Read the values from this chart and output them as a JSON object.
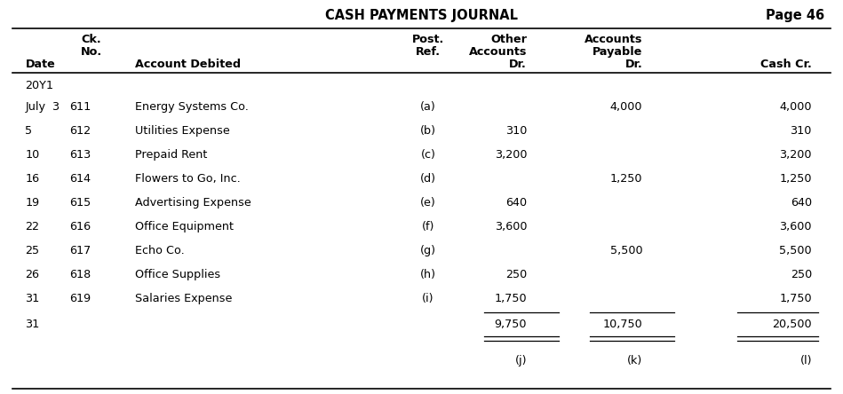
{
  "title": "CASH PAYMENTS JOURNAL",
  "page": "Page 46",
  "year_label": "20Y1",
  "rows": [
    {
      "date": "July  3",
      "ck": "611",
      "account": "Energy Systems Co.",
      "ref": "(a)",
      "other": "",
      "ap": "4,000",
      "cash": "4,000"
    },
    {
      "date": "5",
      "ck": "612",
      "account": "Utilities Expense",
      "ref": "(b)",
      "other": "310",
      "ap": "",
      "cash": "310"
    },
    {
      "date": "10",
      "ck": "613",
      "account": "Prepaid Rent",
      "ref": "(c)",
      "other": "3,200",
      "ap": "",
      "cash": "3,200"
    },
    {
      "date": "16",
      "ck": "614",
      "account": "Flowers to Go, Inc.",
      "ref": "(d)",
      "other": "",
      "ap": "1,250",
      "cash": "1,250"
    },
    {
      "date": "19",
      "ck": "615",
      "account": "Advertising Expense",
      "ref": "(e)",
      "other": "640",
      "ap": "",
      "cash": "640"
    },
    {
      "date": "22",
      "ck": "616",
      "account": "Office Equipment",
      "ref": "(f)",
      "other": "3,600",
      "ap": "",
      "cash": "3,600"
    },
    {
      "date": "25",
      "ck": "617",
      "account": "Echo Co.",
      "ref": "(g)",
      "other": "",
      "ap": "5,500",
      "cash": "5,500"
    },
    {
      "date": "26",
      "ck": "618",
      "account": "Office Supplies",
      "ref": "(h)",
      "other": "250",
      "ap": "",
      "cash": "250"
    },
    {
      "date": "31",
      "ck": "619",
      "account": "Salaries Expense",
      "ref": "(i)",
      "other": "1,750",
      "ap": "",
      "cash": "1,750"
    }
  ],
  "totals_row": {
    "date": "31",
    "other": "9,750",
    "ap": "10,750",
    "cash": "20,500"
  },
  "footnotes": {
    "other": "(j)",
    "ap": "(k)",
    "cash": "(l)"
  },
  "bg_color": "#ffffff",
  "text_color": "#000000",
  "col_x": {
    "date": 0.03,
    "ck": 0.108,
    "account": 0.16,
    "ref": 0.508,
    "other": 0.625,
    "ap": 0.762,
    "cash": 0.963
  },
  "underline_x": {
    "other_l": 0.574,
    "other_r": 0.663,
    "ap_l": 0.7,
    "ap_r": 0.8,
    "cash_l": 0.875,
    "cash_r": 0.97
  },
  "body_fontsize": 9.2,
  "title_fontsize": 10.5,
  "dpi": 100,
  "figw": 9.49,
  "figh": 4.44
}
